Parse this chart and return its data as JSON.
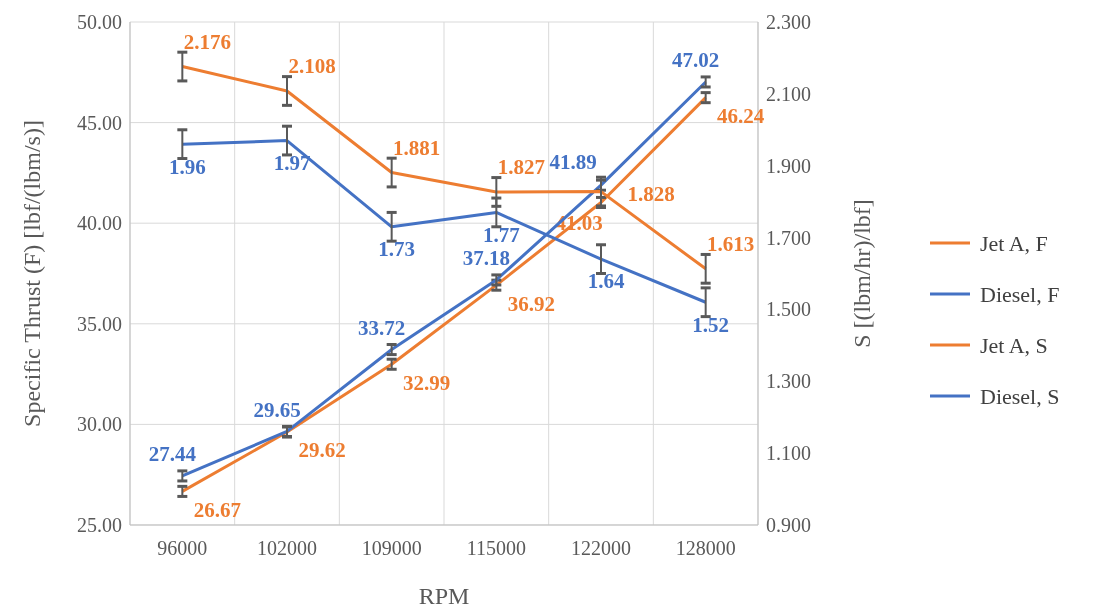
{
  "chart_data": {
    "type": "line",
    "xlabel": "RPM",
    "ylabel": "Specific Thrust (F) [lbf/(lbm/s)]",
    "y2label": "S [(lbm/hr)/lbf]",
    "categories": [
      "96000",
      "102000",
      "109000",
      "115000",
      "122000",
      "128000"
    ],
    "series": [
      {
        "name": "Jet A, F",
        "color": "#ed7d31",
        "values": [
          26.67,
          29.62,
          32.99,
          36.92,
          41.03,
          46.24
        ],
        "errors": [
          0.25,
          0.25,
          0.25,
          0.25,
          0.25,
          0.25
        ]
      },
      {
        "name": "Diesel, F",
        "color": "#4472c4",
        "values": [
          27.44,
          29.65,
          33.72,
          37.18,
          41.89,
          47.02
        ],
        "errors": [
          0.25,
          0.25,
          0.25,
          0.25,
          0.25,
          0.25
        ]
      },
      {
        "name": "Jet A, S",
        "color": "#ed7d31",
        "axis": "y2",
        "values": [
          2.176,
          2.108,
          1.881,
          1.827,
          1.828,
          1.613
        ],
        "errors": [
          0.04,
          0.04,
          0.04,
          0.04,
          0.04,
          0.04
        ]
      },
      {
        "name": "Diesel, S",
        "color": "#4472c4",
        "axis": "y2",
        "values": [
          1.96,
          1.97,
          1.73,
          1.77,
          1.64,
          1.52
        ],
        "errors": [
          0.04,
          0.04,
          0.04,
          0.04,
          0.04,
          0.04
        ]
      }
    ],
    "ylim": [
      25,
      50
    ],
    "yticks": [
      {
        "value": 25,
        "label": "25.00"
      },
      {
        "value": 30,
        "label": "30.00"
      },
      {
        "value": 35,
        "label": "35.00"
      },
      {
        "value": 40,
        "label": "40.00"
      },
      {
        "value": 45,
        "label": "45.00"
      },
      {
        "value": 50,
        "label": "50.00"
      }
    ],
    "y2lim": [
      0.9,
      2.3
    ],
    "y2ticks": [
      {
        "value": 0.9,
        "label": "0.900"
      },
      {
        "value": 1.1,
        "label": "1.100"
      },
      {
        "value": 1.3,
        "label": "1.300"
      },
      {
        "value": 1.5,
        "label": "1.500"
      },
      {
        "value": 1.7,
        "label": "1.700"
      },
      {
        "value": 1.9,
        "label": "1.900"
      },
      {
        "value": 2.1,
        "label": "2.100"
      },
      {
        "value": 2.3,
        "label": "2.300"
      }
    ],
    "grid": true,
    "legend": "right",
    "marker": "none",
    "line_style": "solid",
    "data_labels": true
  }
}
